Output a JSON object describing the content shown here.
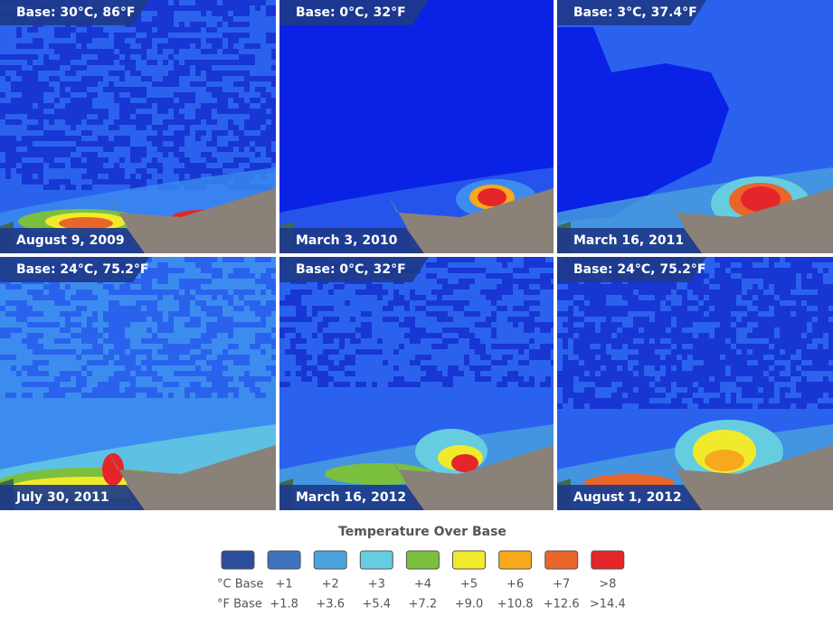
{
  "panels": [
    {
      "base": "Base: 30°C, 86°F",
      "date": "August 9, 2009"
    },
    {
      "base": "Base: 0°C, 32°F",
      "date": "March 3, 2010"
    },
    {
      "base": "Base: 3°C, 37.4°F",
      "date": "March 16, 2011"
    },
    {
      "base": "Base: 24°C, 75.2°F",
      "date": "July 30, 2011"
    },
    {
      "base": "Base: 0°C, 32°F",
      "date": "March 16, 2012"
    },
    {
      "base": "Base: 24°C, 75.2°F",
      "date": "August 1, 2012"
    }
  ],
  "legend": {
    "title": "Temperature Over Base",
    "row_labels": {
      "celsius": "°C Base",
      "fahrenheit": "°F Base"
    },
    "items": [
      {
        "color": "#2c4d9c",
        "celsius": "",
        "fahrenheit": ""
      },
      {
        "color": "#3f72bd",
        "celsius": "+1",
        "fahrenheit": "+1.8"
      },
      {
        "color": "#4aa3dd",
        "celsius": "+2",
        "fahrenheit": "+3.6"
      },
      {
        "color": "#66cde0",
        "celsius": "+3",
        "fahrenheit": "+5.4"
      },
      {
        "color": "#7bbf3f",
        "celsius": "+4",
        "fahrenheit": "+7.2"
      },
      {
        "color": "#f1ea2c",
        "celsius": "+5",
        "fahrenheit": "+9.0"
      },
      {
        "color": "#f7a81b",
        "celsius": "+6",
        "fahrenheit": "+10.8"
      },
      {
        "color": "#e8662a",
        "celsius": "+7",
        "fahrenheit": "+12.6"
      },
      {
        "color": "#e4262b",
        "celsius": ">8",
        "fahrenheit": ">14.4"
      }
    ]
  }
}
